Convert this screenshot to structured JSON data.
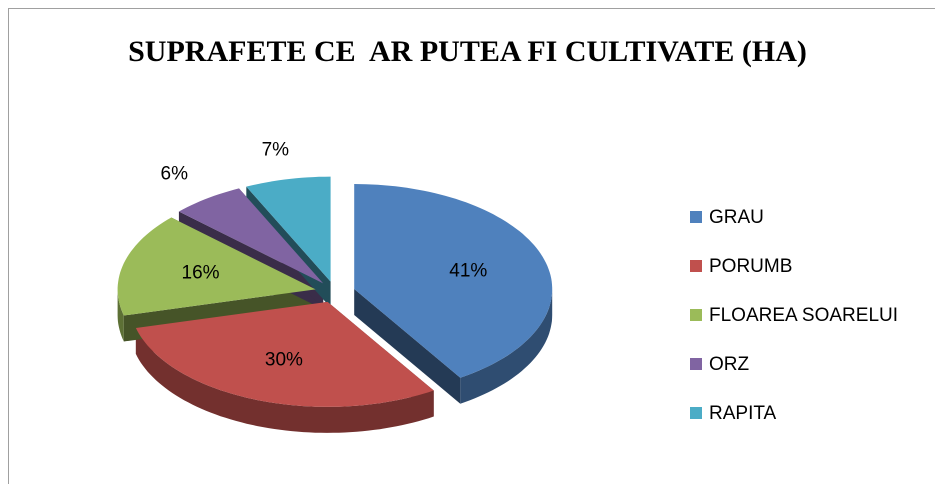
{
  "chart_data": {
    "type": "pie3d",
    "title": "SUPRAFETE CE  AR PUTEA FI CULTIVATE (HA)",
    "categories": [
      "GRAU",
      "PORUMB",
      "FLOAREA SOAREL​UI",
      "ORZ",
      "RAPITA"
    ],
    "values": [
      41,
      30,
      16,
      6,
      7
    ],
    "value_labels": [
      "41%",
      "30%",
      "16%",
      "6%",
      "7%"
    ],
    "colors": [
      "#4f81bd",
      "#c0504d",
      "#9bbb59",
      "#8064a2",
      "#4bacc6"
    ],
    "legend": "right"
  }
}
